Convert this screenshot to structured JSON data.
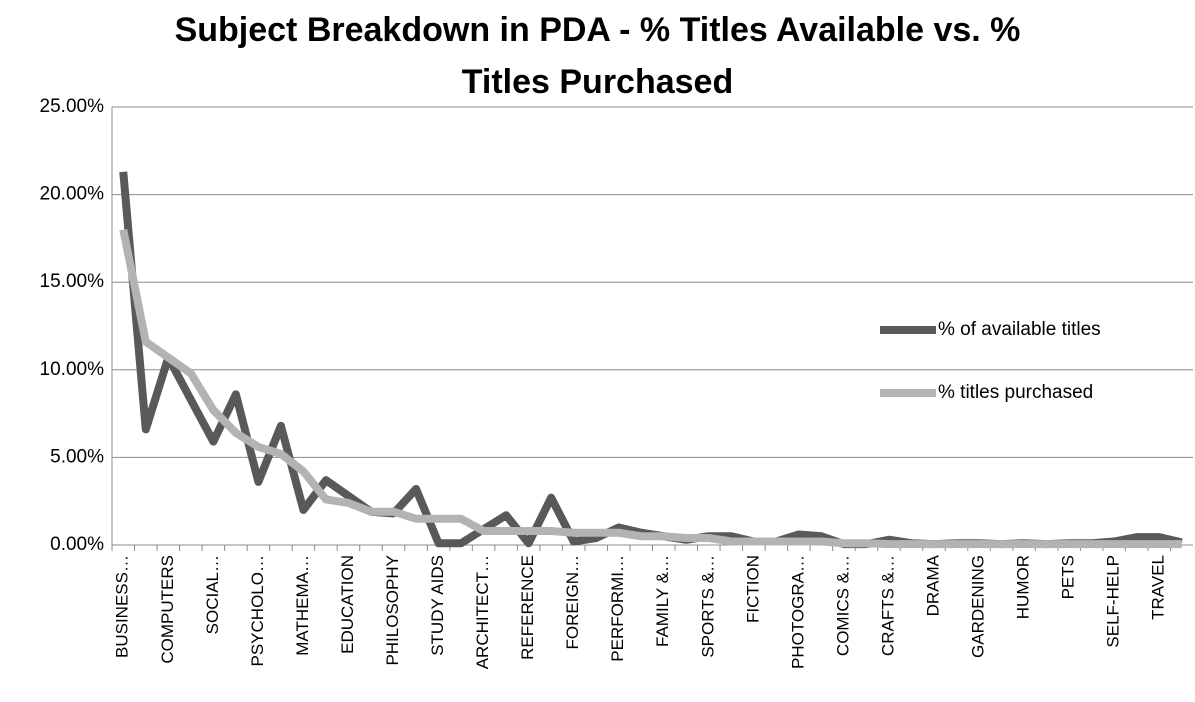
{
  "chart_data": {
    "type": "line",
    "title": "Subject Breakdown in PDA - % Titles Available vs. % Titles Purchased",
    "categories": [
      "BUSINESS…",
      null,
      "COMPUTERS",
      null,
      "SOCIAL…",
      null,
      "PSYCHOLO…",
      null,
      "MATHEMA…",
      null,
      "EDUCATION",
      null,
      "PHILOSOPHY",
      null,
      "STUDY AIDS",
      null,
      "ARCHITECT…",
      null,
      "REFERENCE",
      null,
      "FOREIGN…",
      null,
      "PERFORMI…",
      null,
      "FAMILY &…",
      null,
      "SPORTS &…",
      null,
      "FICTION",
      null,
      "PHOTOGRA…",
      null,
      "COMICS &…",
      null,
      "CRAFTS &…",
      null,
      "DRAMA",
      null,
      "GARDENING",
      null,
      "HUMOR",
      null,
      "PETS",
      null,
      "SELF-HELP",
      null,
      "TRAVEL",
      null
    ],
    "series": [
      {
        "name": "% of available titles",
        "color": "#595959",
        "values": [
          21.3,
          6.6,
          10.7,
          8.3,
          5.9,
          8.6,
          3.6,
          6.8,
          2.0,
          3.7,
          2.8,
          1.9,
          1.8,
          3.2,
          0.1,
          0.1,
          0.9,
          1.7,
          0.1,
          2.7,
          0.2,
          0.4,
          1.0,
          0.7,
          0.5,
          0.3,
          0.5,
          0.5,
          0.2,
          0.2,
          0.6,
          0.5,
          0.05,
          0.05,
          0.3,
          0.1,
          0.05,
          0.1,
          0.1,
          0.05,
          0.1,
          0.05,
          0.1,
          0.1,
          0.2,
          0.45,
          0.45,
          0.15
        ]
      },
      {
        "name": "% titles purchased",
        "color": "#b3b3b3",
        "values": [
          18.0,
          11.6,
          10.7,
          9.8,
          7.7,
          6.4,
          5.6,
          5.2,
          4.2,
          2.6,
          2.4,
          1.9,
          1.9,
          1.5,
          1.5,
          1.5,
          0.8,
          0.8,
          0.8,
          0.8,
          0.7,
          0.7,
          0.7,
          0.5,
          0.5,
          0.4,
          0.4,
          0.2,
          0.2,
          0.2,
          0.2,
          0.2,
          0.1,
          0.1,
          0.05,
          0.05,
          0.05,
          0.05,
          0.05,
          0.05,
          0.05,
          0.05,
          0.05,
          0.05,
          0.05,
          0.05,
          0.05,
          0.05
        ]
      }
    ],
    "ylim": [
      0,
      25
    ],
    "yticks": [
      {
        "value": 0,
        "label": "0.00%"
      },
      {
        "value": 5,
        "label": "5.00%"
      },
      {
        "value": 10,
        "label": "10.00%"
      },
      {
        "value": 15,
        "label": "15.00%"
      },
      {
        "value": 20,
        "label": "20.00%"
      },
      {
        "value": 25,
        "label": "25.00%"
      }
    ],
    "grid": true,
    "legend": "right"
  }
}
